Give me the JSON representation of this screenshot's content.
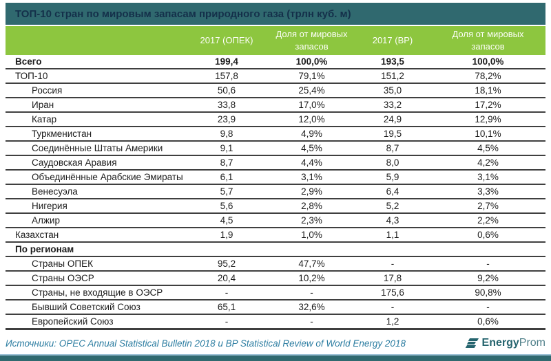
{
  "page": {
    "title": "ТОП-10 стран по мировым запасам природного газа (трлн куб. м)"
  },
  "header": {
    "col_opec": "2017 (ОПЕК)",
    "col_share_opec": "Доля от мировых запасов",
    "col_bp": "2017 (BP)",
    "col_share_bp": "Доля от мировых запасов"
  },
  "footer": {
    "sources": "Источники: OPEC Annual Statistical Bulletin 2018 и BP Statistical Review of World Energy 2018",
    "logo": {
      "bold": "Energy",
      "light": "Prom"
    }
  },
  "colors": {
    "title_bar_bg": "#30696F",
    "title_text": "#14304A",
    "header_bg": "#8DC63F",
    "header_text": "#FDFEF9",
    "row_line": "#3F3F3F",
    "footer_text": "#2C7DA1",
    "logo_teal": "#25646E",
    "logo_light": "#4D7E88"
  },
  "chart_data": {
    "type": "table",
    "title": "ТОП-10 стран по мировым запасам природного газа (трлн куб. м)",
    "unit": "трлн куб. м",
    "columns": [
      "",
      "2017 (ОПЕК)",
      "Доля от мировых запасов",
      "2017 (BP)",
      "Доля от мировых запасов"
    ],
    "rows": [
      {
        "label": "Всего",
        "bold": true,
        "indent": false,
        "values": [
          "199,4",
          "100,0%",
          "193,5",
          "100,0%"
        ]
      },
      {
        "label": "ТОП-10",
        "bold": false,
        "indent": false,
        "values": [
          "157,8",
          "79,1%",
          "151,2",
          "78,2%"
        ]
      },
      {
        "label": "Россия",
        "bold": false,
        "indent": true,
        "values": [
          "50,6",
          "25,4%",
          "35,0",
          "18,1%"
        ]
      },
      {
        "label": "Иран",
        "bold": false,
        "indent": true,
        "values": [
          "33,8",
          "17,0%",
          "33,2",
          "17,2%"
        ]
      },
      {
        "label": "Катар",
        "bold": false,
        "indent": true,
        "values": [
          "23,9",
          "12,0%",
          "24,9",
          "12,9%"
        ]
      },
      {
        "label": "Туркменистан",
        "bold": false,
        "indent": true,
        "values": [
          "9,8",
          "4,9%",
          "19,5",
          "10,1%"
        ]
      },
      {
        "label": "Соединённые Штаты Америки",
        "bold": false,
        "indent": true,
        "values": [
          "9,1",
          "4,5%",
          "8,7",
          "4,5%"
        ]
      },
      {
        "label": "Саудовская Аравия",
        "bold": false,
        "indent": true,
        "values": [
          "8,7",
          "4,4%",
          "8,0",
          "4,2%"
        ]
      },
      {
        "label": "Объединённые Арабские Эмираты",
        "bold": false,
        "indent": true,
        "values": [
          "6,1",
          "3,1%",
          "5,9",
          "3,1%"
        ]
      },
      {
        "label": "Венесуэла",
        "bold": false,
        "indent": true,
        "values": [
          "5,7",
          "2,9%",
          "6,4",
          "3,3%"
        ]
      },
      {
        "label": "Нигерия",
        "bold": false,
        "indent": true,
        "values": [
          "5,6",
          "2,8%",
          "5,2",
          "2,7%"
        ]
      },
      {
        "label": "Алжир",
        "bold": false,
        "indent": true,
        "values": [
          "4,5",
          "2,3%",
          "4,3",
          "2,2%"
        ]
      },
      {
        "label": "Казахстан",
        "bold": false,
        "indent": false,
        "values": [
          "1,9",
          "1,0%",
          "1,1",
          "0,6%"
        ]
      },
      {
        "label": "По регионам",
        "bold": true,
        "indent": false,
        "values": [
          "",
          "",
          "",
          ""
        ]
      },
      {
        "label": "Страны ОПЕК",
        "bold": false,
        "indent": true,
        "values": [
          "95,2",
          "47,7%",
          "-",
          "-"
        ]
      },
      {
        "label": "Страны ОЭСР",
        "bold": false,
        "indent": true,
        "values": [
          "20,4",
          "10,2%",
          "17,8",
          "9,2%"
        ]
      },
      {
        "label": "Страны, не входящие в ОЭСР",
        "bold": false,
        "indent": true,
        "values": [
          "-",
          "-",
          "175,6",
          "90,8%"
        ]
      },
      {
        "label": "Бывший Советский Союз",
        "bold": false,
        "indent": true,
        "values": [
          "65,1",
          "32,6%",
          "-",
          "-"
        ]
      },
      {
        "label": "Европейский Союз",
        "bold": false,
        "indent": true,
        "values": [
          "-",
          "-",
          "1,2",
          "0,6%"
        ]
      }
    ]
  }
}
